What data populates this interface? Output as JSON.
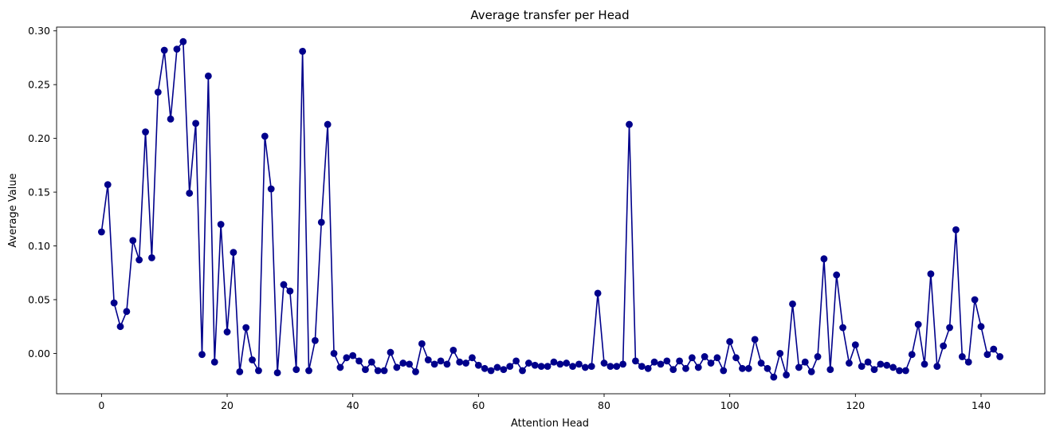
{
  "chart_data": {
    "type": "line",
    "title": "Average transfer per Head",
    "xlabel": "Attention Head",
    "ylabel": "Average Value",
    "xlim": [
      -7.15,
      150.15
    ],
    "ylim": [
      -0.0375,
      0.3035
    ],
    "x_ticks": [
      0,
      20,
      40,
      60,
      80,
      100,
      120,
      140
    ],
    "y_ticks": [
      0.0,
      0.05,
      0.1,
      0.15,
      0.2,
      0.25,
      0.3
    ],
    "x_tick_labels": [
      "0",
      "20",
      "40",
      "60",
      "80",
      "100",
      "120",
      "140"
    ],
    "y_tick_labels": [
      "0.00",
      "0.05",
      "0.10",
      "0.15",
      "0.20",
      "0.25",
      "0.30"
    ],
    "grid": false,
    "legend": "none",
    "color": "#00008b",
    "marker": "circle",
    "series": [
      {
        "values": [
          0.113,
          0.157,
          0.047,
          0.025,
          0.039,
          0.105,
          0.087,
          0.206,
          0.089,
          0.243,
          0.282,
          0.218,
          0.283,
          0.29,
          0.149,
          0.214,
          -0.001,
          0.258,
          -0.008,
          0.12,
          0.02,
          0.094,
          -0.017,
          0.024,
          -0.006,
          -0.016,
          0.202,
          0.153,
          -0.018,
          0.064,
          0.058,
          -0.015,
          0.281,
          -0.016,
          0.012,
          0.122,
          0.213,
          0.0,
          -0.013,
          -0.004,
          -0.002,
          -0.007,
          -0.015,
          -0.008,
          -0.016,
          -0.016,
          0.001,
          -0.013,
          -0.009,
          -0.01,
          -0.017,
          0.009,
          -0.006,
          -0.01,
          -0.007,
          -0.01,
          0.003,
          -0.008,
          -0.009,
          -0.004,
          -0.011,
          -0.014,
          -0.016,
          -0.013,
          -0.015,
          -0.012,
          -0.007,
          -0.016,
          -0.009,
          -0.011,
          -0.012,
          -0.012,
          -0.008,
          -0.01,
          -0.009,
          -0.012,
          -0.01,
          -0.013,
          -0.012,
          0.056,
          -0.009,
          -0.012,
          -0.012,
          -0.01,
          0.213,
          -0.007,
          -0.012,
          -0.014,
          -0.008,
          -0.01,
          -0.007,
          -0.015,
          -0.007,
          -0.014,
          -0.004,
          -0.013,
          -0.003,
          -0.009,
          -0.004,
          -0.016,
          0.011,
          -0.004,
          -0.014,
          -0.014,
          0.013,
          -0.009,
          -0.014,
          -0.022,
          0.0,
          -0.02,
          0.046,
          -0.013,
          -0.008,
          -0.017,
          -0.003,
          0.088,
          -0.015,
          0.073,
          0.024,
          -0.009,
          0.008,
          -0.012,
          -0.008,
          -0.015,
          -0.01,
          -0.011,
          -0.013,
          -0.016,
          -0.016,
          -0.001,
          0.027,
          -0.01,
          0.074,
          -0.012,
          0.007,
          0.024,
          0.115,
          -0.003,
          -0.008,
          0.05,
          0.025,
          -0.001,
          0.004,
          -0.003
        ]
      }
    ]
  }
}
